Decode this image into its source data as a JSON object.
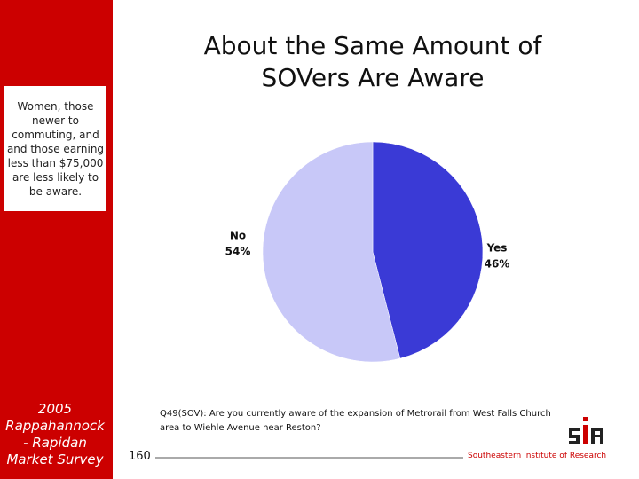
{
  "chart_data": {
    "type": "pie",
    "title": "About the Same Amount of SOVers Are Aware",
    "categories": [
      "Yes",
      "No"
    ],
    "values": [
      46,
      54
    ],
    "value_labels": [
      "46%",
      "54%"
    ],
    "colors": [
      "#3a3ad6",
      "#c8c8f8"
    ]
  },
  "sidebar": {
    "note": "Women, those newer to commuting, and and those earning less than $75,000 are less likely to be aware.",
    "survey": "2005 Rappahannock - Rapidan Market Survey"
  },
  "question": "Q49(SOV): Are you currently aware of the expansion of Metrorail from West Falls Church area to Wiehle Avenue near Reston?",
  "footer": {
    "page": "160",
    "org": "Southeastern Institute of Research"
  }
}
